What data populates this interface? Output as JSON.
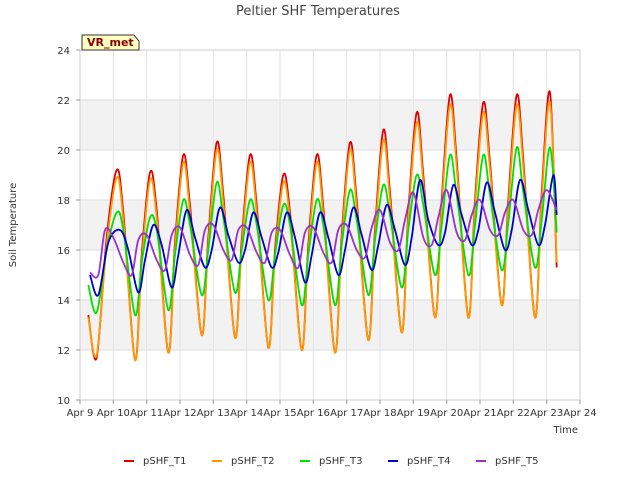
{
  "chart_data": {
    "type": "line",
    "title": "Peltier SHF Temperatures",
    "xlabel": "Time",
    "ylabel": "Soil Temperature",
    "badge": "VR_met",
    "xlim": [
      9,
      24
    ],
    "ylim": [
      10,
      24
    ],
    "x_ticks": [
      {
        "value": 9,
        "label": "Apr 9"
      },
      {
        "value": 10,
        "label": "Apr 10"
      },
      {
        "value": 11,
        "label": "Apr 11"
      },
      {
        "value": 12,
        "label": "Apr 12"
      },
      {
        "value": 13,
        "label": "Apr 13"
      },
      {
        "value": 14,
        "label": "Apr 14"
      },
      {
        "value": 15,
        "label": "Apr 15"
      },
      {
        "value": 16,
        "label": "Apr 16"
      },
      {
        "value": 17,
        "label": "Apr 17"
      },
      {
        "value": 18,
        "label": "Apr 18"
      },
      {
        "value": 19,
        "label": "Apr 19"
      },
      {
        "value": 20,
        "label": "Apr 20"
      },
      {
        "value": 21,
        "label": "Apr 21"
      },
      {
        "value": 22,
        "label": "Apr 22"
      },
      {
        "value": 23,
        "label": "Apr 23"
      },
      {
        "value": 24,
        "label": "Apr 24"
      }
    ],
    "y_ticks": [
      10,
      12,
      14,
      16,
      18,
      20,
      22,
      24
    ],
    "grid": true,
    "legend_position": "bottom",
    "series": [
      {
        "name": "pSHF_T1",
        "color": "#e00000",
        "x": [
          9.25,
          9.5,
          9.8,
          10.1,
          10.3,
          10.65,
          10.85,
          11.1,
          11.3,
          11.65,
          11.85,
          12.1,
          12.3,
          12.65,
          12.85,
          13.1,
          13.3,
          13.65,
          13.85,
          14.1,
          14.3,
          14.65,
          14.85,
          15.1,
          15.3,
          15.65,
          15.85,
          16.1,
          16.3,
          16.65,
          16.85,
          17.1,
          17.3,
          17.65,
          17.85,
          18.1,
          18.3,
          18.65,
          18.85,
          19.1,
          19.3,
          19.65,
          19.85,
          20.1,
          20.3,
          20.65,
          20.85,
          21.1,
          21.3,
          21.65,
          21.85,
          22.1,
          22.3,
          22.65,
          22.85,
          23.1,
          23.3
        ],
        "y": [
          13.4,
          11.7,
          16.5,
          19.2,
          17.5,
          11.6,
          15.8,
          19.1,
          17.6,
          11.9,
          16.3,
          19.8,
          17.8,
          12.6,
          16.5,
          20.3,
          18.2,
          12.5,
          16.4,
          19.8,
          17.8,
          12.1,
          16.0,
          19.0,
          17.5,
          12.0,
          16.2,
          19.8,
          17.7,
          11.9,
          16.6,
          20.3,
          18.0,
          12.4,
          16.8,
          20.8,
          18.3,
          12.7,
          17.5,
          21.5,
          19.0,
          13.3,
          18.0,
          22.2,
          19.6,
          13.3,
          18.0,
          21.9,
          19.5,
          13.8,
          18.0,
          22.2,
          19.6,
          13.3,
          18.3,
          22.3,
          15.3
        ]
      },
      {
        "name": "pSHF_T2",
        "color": "#ff9900",
        "x": [
          9.25,
          9.5,
          9.8,
          10.1,
          10.3,
          10.65,
          10.85,
          11.1,
          11.3,
          11.65,
          11.85,
          12.1,
          12.3,
          12.65,
          12.85,
          13.1,
          13.3,
          13.65,
          13.85,
          14.1,
          14.3,
          14.65,
          14.85,
          15.1,
          15.3,
          15.65,
          15.85,
          16.1,
          16.3,
          16.65,
          16.85,
          17.1,
          17.3,
          17.65,
          17.85,
          18.1,
          18.3,
          18.65,
          18.85,
          19.1,
          19.3,
          19.65,
          19.85,
          20.1,
          20.3,
          20.65,
          20.85,
          21.1,
          21.3,
          21.65,
          21.85,
          22.1,
          22.3,
          22.65,
          22.85,
          23.1,
          23.3
        ],
        "y": [
          13.3,
          11.8,
          16.2,
          18.9,
          17.2,
          11.6,
          15.5,
          18.8,
          17.3,
          11.9,
          16.0,
          19.5,
          17.5,
          12.6,
          16.2,
          20.0,
          17.9,
          12.5,
          16.1,
          19.5,
          17.5,
          12.1,
          15.7,
          18.7,
          17.2,
          12.0,
          15.9,
          19.5,
          17.4,
          11.9,
          16.3,
          20.0,
          17.7,
          12.4,
          16.5,
          20.4,
          18.0,
          12.7,
          17.2,
          21.1,
          18.7,
          13.3,
          17.7,
          21.8,
          19.3,
          13.3,
          17.7,
          21.5,
          19.2,
          13.8,
          17.7,
          21.8,
          19.3,
          13.3,
          18.0,
          21.9,
          15.5
        ]
      },
      {
        "name": "pSHF_T3",
        "color": "#00e000",
        "x": [
          9.25,
          9.5,
          9.8,
          10.1,
          10.3,
          10.65,
          10.85,
          11.1,
          11.3,
          11.65,
          11.85,
          12.1,
          12.3,
          12.65,
          12.85,
          13.1,
          13.3,
          13.65,
          13.85,
          14.1,
          14.3,
          14.65,
          14.85,
          15.1,
          15.3,
          15.65,
          15.85,
          16.1,
          16.3,
          16.65,
          16.85,
          17.1,
          17.3,
          17.65,
          17.85,
          18.1,
          18.3,
          18.65,
          18.85,
          19.1,
          19.3,
          19.65,
          19.85,
          20.1,
          20.3,
          20.65,
          20.85,
          21.1,
          21.3,
          21.65,
          21.85,
          22.1,
          22.3,
          22.65,
          22.85,
          23.1,
          23.3
        ],
        "y": [
          14.6,
          13.5,
          16.0,
          17.5,
          16.8,
          13.4,
          15.5,
          17.3,
          16.8,
          13.6,
          15.8,
          18.0,
          17.0,
          14.2,
          16.0,
          18.7,
          17.3,
          14.3,
          16.0,
          18.0,
          17.0,
          14.0,
          15.8,
          17.8,
          17.0,
          13.8,
          15.8,
          18.0,
          17.0,
          13.8,
          16.2,
          18.4,
          17.2,
          14.2,
          16.4,
          18.6,
          17.4,
          14.5,
          16.8,
          19.0,
          17.8,
          15.0,
          17.0,
          19.8,
          18.2,
          15.0,
          17.0,
          19.8,
          18.2,
          15.2,
          17.1,
          20.1,
          18.3,
          15.3,
          17.2,
          20.1,
          16.7
        ]
      },
      {
        "name": "pSHF_T4",
        "color": "#0000cc",
        "x": [
          9.3,
          9.55,
          9.85,
          10.2,
          10.45,
          10.75,
          10.95,
          11.2,
          11.45,
          11.75,
          11.95,
          12.2,
          12.45,
          12.75,
          12.95,
          13.2,
          13.45,
          13.75,
          13.95,
          14.2,
          14.45,
          14.75,
          14.95,
          15.2,
          15.45,
          15.75,
          15.95,
          16.2,
          16.45,
          16.75,
          16.95,
          17.2,
          17.45,
          17.75,
          17.95,
          18.2,
          18.45,
          18.75,
          18.95,
          19.2,
          19.45,
          19.75,
          19.95,
          20.2,
          20.45,
          20.75,
          20.95,
          21.2,
          21.45,
          21.75,
          21.95,
          22.2,
          22.45,
          22.75,
          22.95,
          23.2,
          23.3
        ],
        "y": [
          15.0,
          14.2,
          16.3,
          16.8,
          16.0,
          14.3,
          15.6,
          17.0,
          16.2,
          14.5,
          15.8,
          17.6,
          16.5,
          15.3,
          16.0,
          17.7,
          16.6,
          15.5,
          16.0,
          17.5,
          16.5,
          15.3,
          15.9,
          17.5,
          16.5,
          14.7,
          15.8,
          17.5,
          16.5,
          15.0,
          16.0,
          17.7,
          16.6,
          15.2,
          16.2,
          17.8,
          16.8,
          15.4,
          16.5,
          18.8,
          17.2,
          16.2,
          16.7,
          18.6,
          17.4,
          16.2,
          16.8,
          18.7,
          17.5,
          16.0,
          16.8,
          18.8,
          17.6,
          16.2,
          17.0,
          19.0,
          17.4
        ]
      },
      {
        "name": "pSHF_T5",
        "color": "#9933cc",
        "x": [
          9.3,
          9.55,
          9.75,
          10.0,
          10.3,
          10.55,
          10.75,
          11.0,
          11.3,
          11.55,
          11.75,
          12.0,
          12.3,
          12.55,
          12.75,
          13.0,
          13.3,
          13.55,
          13.75,
          14.0,
          14.3,
          14.55,
          14.75,
          15.0,
          15.3,
          15.55,
          15.75,
          16.0,
          16.3,
          16.55,
          16.75,
          17.0,
          17.3,
          17.55,
          17.75,
          18.0,
          18.3,
          18.55,
          18.75,
          19.0,
          19.3,
          19.55,
          19.75,
          20.0,
          20.3,
          20.55,
          20.75,
          21.0,
          21.3,
          21.55,
          21.75,
          22.0,
          22.3,
          22.55,
          22.75,
          23.0,
          23.3
        ],
        "y": [
          15.1,
          15.0,
          16.8,
          16.5,
          15.5,
          15.0,
          16.4,
          16.6,
          15.6,
          15.2,
          16.6,
          16.9,
          15.8,
          15.4,
          16.8,
          17.0,
          16.0,
          15.6,
          16.8,
          16.9,
          15.9,
          15.5,
          16.7,
          16.8,
          15.8,
          15.3,
          16.7,
          16.9,
          15.9,
          15.5,
          16.8,
          17.0,
          16.0,
          15.7,
          16.9,
          17.6,
          16.3,
          16.0,
          17.2,
          18.3,
          16.5,
          16.2,
          17.3,
          18.4,
          16.7,
          16.4,
          17.4,
          18.0,
          16.8,
          16.6,
          17.5,
          18.0,
          16.8,
          16.6,
          17.6,
          18.4,
          17.6
        ]
      }
    ]
  }
}
